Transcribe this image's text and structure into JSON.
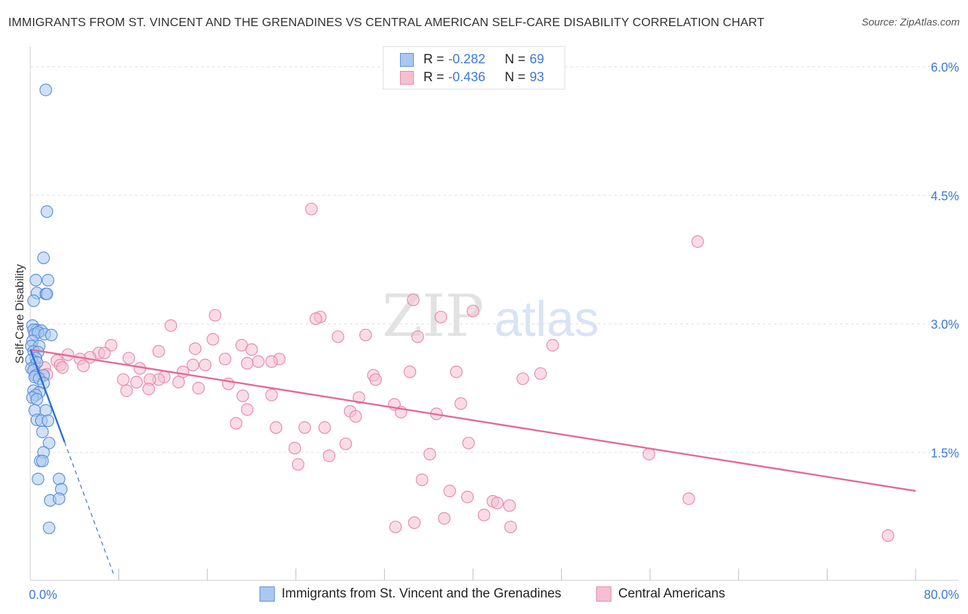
{
  "title": "IMMIGRANTS FROM ST. VINCENT AND THE GRENADINES VS CENTRAL AMERICAN SELF-CARE DISABILITY CORRELATION CHART",
  "source": "Source: ZipAtlas.com",
  "watermark": {
    "zip": "ZIP",
    "atlas": "atlas"
  },
  "legend": {
    "r_label": "R =",
    "n_label": "N =",
    "rows": [
      {
        "r": "-0.282",
        "n": "69"
      },
      {
        "r": "-0.436",
        "n": "93"
      }
    ]
  },
  "colors": {
    "blue_fill": "#a9c8f0",
    "blue_stroke": "#5a8fd8",
    "blue_line": "#2a6fd6",
    "pink_fill": "#f6bfd0",
    "pink_stroke": "#e58aaa",
    "pink_line": "#e46a96",
    "axis_label": "#3c78d8",
    "grid": "#dddddd"
  },
  "chart_data": {
    "type": "scatter",
    "ylabel": "Self-Care Disability",
    "xlim": [
      0,
      80
    ],
    "ylim": [
      0,
      6.2
    ],
    "x_tick_labels": [
      {
        "value": 0,
        "label": "0.0%"
      },
      {
        "value": 80,
        "label": "80.0%"
      }
    ],
    "y_ticks": [
      {
        "value": 1.5,
        "label": "1.5%"
      },
      {
        "value": 3.0,
        "label": "3.0%"
      },
      {
        "value": 4.5,
        "label": "4.5%"
      },
      {
        "value": 6.0,
        "label": "6.0%"
      }
    ],
    "series": [
      {
        "name": "Immigrants from St. Vincent and the Grenadines",
        "color": "blue",
        "trend": {
          "x0": 0.0,
          "y0": 2.7,
          "x1": 3.1,
          "y1": 1.62,
          "dash_to_x": 7.5
        },
        "points": [
          [
            1.4,
            5.73
          ],
          [
            1.5,
            4.31
          ],
          [
            1.2,
            3.77
          ],
          [
            0.5,
            3.51
          ],
          [
            1.6,
            3.51
          ],
          [
            0.6,
            3.36
          ],
          [
            1.4,
            3.35
          ],
          [
            1.5,
            3.35
          ],
          [
            0.3,
            3.27
          ],
          [
            0.2,
            2.98
          ],
          [
            0.6,
            2.93
          ],
          [
            0.3,
            2.93
          ],
          [
            1.0,
            2.92
          ],
          [
            0.4,
            2.88
          ],
          [
            0.7,
            2.9
          ],
          [
            1.3,
            2.88
          ],
          [
            1.9,
            2.87
          ],
          [
            0.2,
            2.8
          ],
          [
            0.1,
            2.74
          ],
          [
            0.8,
            2.74
          ],
          [
            0.3,
            2.68
          ],
          [
            0.7,
            2.67
          ],
          [
            0.5,
            2.6
          ],
          [
            0.1,
            2.58
          ],
          [
            0.6,
            2.55
          ],
          [
            0.1,
            2.48
          ],
          [
            0.3,
            2.46
          ],
          [
            0.5,
            2.4
          ],
          [
            1.2,
            2.4
          ],
          [
            0.4,
            2.38
          ],
          [
            0.8,
            2.36
          ],
          [
            1.2,
            2.31
          ],
          [
            0.3,
            2.22
          ],
          [
            0.8,
            2.2
          ],
          [
            0.5,
            2.17
          ],
          [
            0.2,
            2.14
          ],
          [
            0.6,
            2.12
          ],
          [
            0.4,
            1.99
          ],
          [
            1.4,
            1.99
          ],
          [
            0.6,
            1.88
          ],
          [
            1.0,
            1.87
          ],
          [
            1.6,
            1.87
          ],
          [
            1.1,
            1.74
          ],
          [
            1.7,
            1.61
          ],
          [
            1.2,
            1.5
          ],
          [
            0.9,
            1.4
          ],
          [
            1.1,
            1.4
          ],
          [
            0.7,
            1.19
          ],
          [
            2.6,
            1.19
          ],
          [
            2.8,
            1.07
          ],
          [
            1.8,
            0.94
          ],
          [
            2.6,
            0.96
          ],
          [
            1.7,
            0.62
          ]
        ]
      },
      {
        "name": "Central Americans",
        "color": "pink",
        "trend": {
          "x0": 0.0,
          "y0": 2.7,
          "x1": 80.0,
          "y1": 1.05
        },
        "points": [
          [
            25.4,
            4.34
          ],
          [
            60.3,
            3.96
          ],
          [
            34.6,
            3.28
          ],
          [
            40.0,
            3.15
          ],
          [
            16.7,
            3.1
          ],
          [
            26.2,
            3.08
          ],
          [
            25.8,
            3.06
          ],
          [
            37.1,
            3.08
          ],
          [
            12.7,
            2.98
          ],
          [
            27.8,
            2.85
          ],
          [
            30.3,
            2.87
          ],
          [
            35.0,
            2.85
          ],
          [
            16.5,
            2.82
          ],
          [
            47.2,
            2.75
          ],
          [
            7.3,
            2.75
          ],
          [
            19.1,
            2.75
          ],
          [
            14.9,
            2.71
          ],
          [
            20.0,
            2.7
          ],
          [
            11.6,
            2.68
          ],
          [
            6.2,
            2.66
          ],
          [
            6.7,
            2.66
          ],
          [
            3.4,
            2.64
          ],
          [
            5.4,
            2.61
          ],
          [
            8.9,
            2.6
          ],
          [
            4.5,
            2.59
          ],
          [
            17.6,
            2.59
          ],
          [
            22.5,
            2.59
          ],
          [
            2.4,
            2.57
          ],
          [
            20.6,
            2.56
          ],
          [
            21.8,
            2.56
          ],
          [
            19.6,
            2.54
          ],
          [
            14.7,
            2.52
          ],
          [
            2.7,
            2.52
          ],
          [
            15.8,
            2.52
          ],
          [
            4.8,
            2.51
          ],
          [
            0.4,
            2.51
          ],
          [
            1.3,
            2.49
          ],
          [
            2.9,
            2.49
          ],
          [
            9.9,
            2.48
          ],
          [
            13.8,
            2.44
          ],
          [
            34.3,
            2.44
          ],
          [
            38.5,
            2.44
          ],
          [
            46.1,
            2.42
          ],
          [
            1.5,
            2.41
          ],
          [
            31.0,
            2.4
          ],
          [
            12.1,
            2.38
          ],
          [
            11.6,
            2.35
          ],
          [
            31.2,
            2.35
          ],
          [
            8.4,
            2.35
          ],
          [
            10.8,
            2.35
          ],
          [
            44.5,
            2.36
          ],
          [
            13.4,
            2.32
          ],
          [
            9.6,
            2.32
          ],
          [
            17.9,
            2.3
          ],
          [
            15.2,
            2.25
          ],
          [
            8.7,
            2.22
          ],
          [
            10.7,
            2.24
          ],
          [
            21.8,
            2.17
          ],
          [
            19.2,
            2.16
          ],
          [
            29.7,
            2.14
          ],
          [
            32.9,
            2.06
          ],
          [
            38.9,
            2.07
          ],
          [
            19.6,
            2.0
          ],
          [
            28.9,
            1.98
          ],
          [
            33.5,
            1.97
          ],
          [
            29.4,
            1.92
          ],
          [
            36.7,
            1.95
          ],
          [
            18.6,
            1.84
          ],
          [
            22.2,
            1.79
          ],
          [
            24.8,
            1.79
          ],
          [
            26.6,
            1.79
          ],
          [
            23.9,
            1.55
          ],
          [
            28.5,
            1.6
          ],
          [
            39.6,
            1.61
          ],
          [
            24.2,
            1.36
          ],
          [
            36.1,
            1.48
          ],
          [
            27.0,
            1.46
          ],
          [
            55.9,
            1.48
          ],
          [
            35.4,
            1.18
          ],
          [
            37.9,
            1.05
          ],
          [
            39.5,
            0.98
          ],
          [
            41.8,
            0.93
          ],
          [
            42.2,
            0.91
          ],
          [
            43.3,
            0.88
          ],
          [
            41.0,
            0.77
          ],
          [
            37.4,
            0.73
          ],
          [
            34.7,
            0.68
          ],
          [
            33.0,
            0.63
          ],
          [
            43.4,
            0.63
          ],
          [
            59.5,
            0.96
          ],
          [
            77.5,
            0.53
          ]
        ]
      }
    ]
  }
}
